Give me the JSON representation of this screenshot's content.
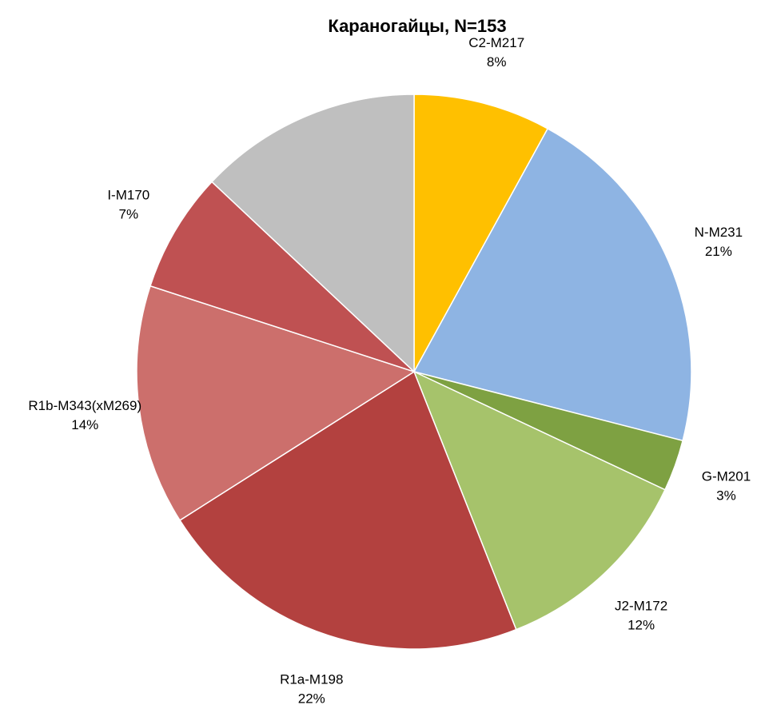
{
  "chart_data": {
    "type": "pie",
    "title": "Караногайцы, N=153",
    "start": "12 o'clock",
    "direction": "clockwise",
    "slices": [
      {
        "name": "C2-M217",
        "value": 8,
        "label": "8%",
        "color": "#FFC000"
      },
      {
        "name": "N-M231",
        "value": 21,
        "label": "21%",
        "color": "#8EB4E3"
      },
      {
        "name": "G-M201",
        "value": 3,
        "label": "3%",
        "color": "#7EA142"
      },
      {
        "name": "J2-M172",
        "value": 12,
        "label": "12%",
        "color": "#A6C36B"
      },
      {
        "name": "R1a-M198",
        "value": 22,
        "label": "22%",
        "color": "#B3413F"
      },
      {
        "name": "R1b-M343(xM269)",
        "value": 14,
        "label": "14%",
        "color": "#CC6F6C"
      },
      {
        "name": "I-M170",
        "value": 7,
        "label": "7%",
        "color": "#BF5152"
      },
      {
        "name": "",
        "value": 13,
        "label": "",
        "color": "#BFBFBF"
      }
    ]
  }
}
